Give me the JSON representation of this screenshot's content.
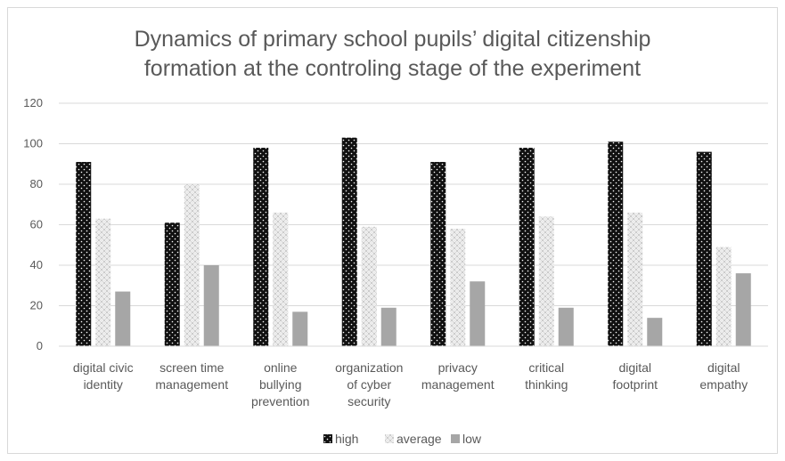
{
  "chart_data": {
    "type": "bar",
    "title_lines": [
      "Dynamics of primary school pupils’ digital citizenship",
      "formation at the controling stage of the experiment"
    ],
    "categories": [
      [
        "digital civic",
        "identity"
      ],
      [
        "screen time",
        "management"
      ],
      [
        "online",
        "bullying",
        "prevention"
      ],
      [
        "organization",
        "of cyber",
        "security"
      ],
      [
        "privacy",
        "management"
      ],
      [
        "critical",
        "thinking"
      ],
      [
        "digital",
        "footprint"
      ],
      [
        "digital",
        "empathy"
      ]
    ],
    "series": [
      {
        "name": "high",
        "values": [
          91,
          61,
          98,
          103,
          91,
          98,
          101,
          96
        ]
      },
      {
        "name": "average",
        "values": [
          63,
          80,
          66,
          59,
          58,
          64,
          66,
          49
        ]
      },
      {
        "name": "low",
        "values": [
          27,
          40,
          17,
          19,
          32,
          19,
          14,
          36
        ]
      }
    ],
    "ylim": [
      0,
      120
    ],
    "yticks": [
      0,
      20,
      40,
      60,
      80,
      100,
      120
    ],
    "grid": true,
    "legend_position": "bottom"
  }
}
